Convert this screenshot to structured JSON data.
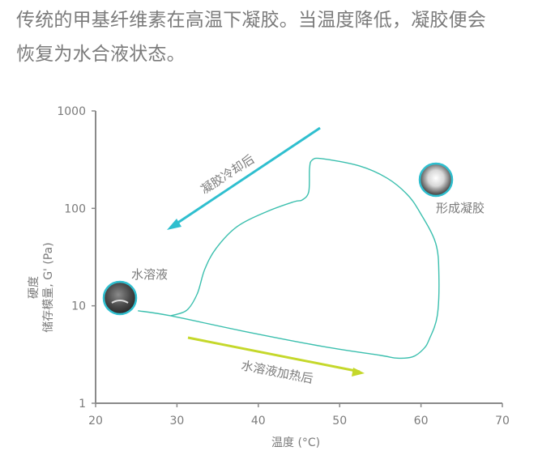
{
  "intro": {
    "line1": "传统的甲基纤维素在高温下凝胶。当温度降低，凝胶便会",
    "line2": "恢复为水合液状态。"
  },
  "chart_data": {
    "type": "line",
    "xlabel": "温度 (°C)",
    "ylabel_line1": "硬度",
    "ylabel_line2": "储存模量, G' (Pa)",
    "xlim": [
      20,
      70
    ],
    "ylim": [
      1,
      1000
    ],
    "yscale": "log",
    "xticks": [
      "20",
      "30",
      "40",
      "50",
      "60",
      "70"
    ],
    "yticks": [
      "1",
      "10",
      "100",
      "1000"
    ],
    "grid": false,
    "series": [
      {
        "color": "#3bbfae",
        "points": [
          [
            25.2,
            8.9
          ],
          [
            29.2,
            7.9
          ],
          [
            38.1,
            5.5
          ],
          [
            48.1,
            3.8
          ],
          [
            55.0,
            3.1
          ],
          [
            57.1,
            2.9
          ],
          [
            59.0,
            3.0
          ],
          [
            60.3,
            3.6
          ],
          [
            61.0,
            4.5
          ],
          [
            62.0,
            7.9
          ],
          [
            62.2,
            20.6
          ],
          [
            61.8,
            44
          ],
          [
            59.9,
            90
          ],
          [
            58.3,
            139
          ],
          [
            55.8,
            205
          ],
          [
            52.4,
            273
          ],
          [
            47.8,
            324
          ],
          [
            46.6,
            312
          ],
          [
            46.3,
            257
          ],
          [
            46.2,
            148
          ],
          [
            45.4,
            122
          ],
          [
            44.4,
            117
          ],
          [
            41.1,
            93
          ],
          [
            37.4,
            65
          ],
          [
            34.8,
            38.7
          ],
          [
            33.4,
            23.5
          ],
          [
            32.5,
            13.3
          ],
          [
            31.2,
            9.0
          ],
          [
            29.2,
            7.9
          ]
        ]
      }
    ],
    "annotations": {
      "cooling": {
        "label": "凝胶冷却后",
        "color": "#2fbfcf"
      },
      "heating": {
        "label": "水溶液加热后",
        "color": "#c5d82b"
      },
      "solution": {
        "label": "水溶液"
      },
      "gel": {
        "label": "形成凝胶"
      }
    },
    "colors": {
      "axis": "#8a8a8a",
      "text": "#7b7b7b",
      "ring": "#2fbfcf"
    }
  }
}
